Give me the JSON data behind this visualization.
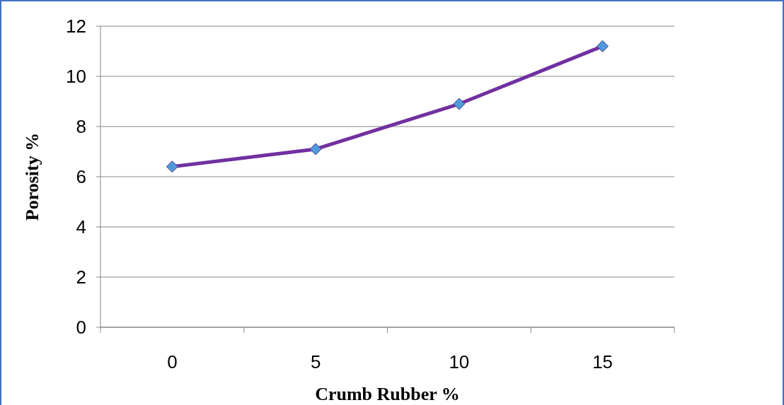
{
  "chart_data": {
    "type": "line",
    "xlabel": "Crumb Rubber %",
    "ylabel": "Porosity %",
    "categories": [
      "0",
      "5",
      "10",
      "15"
    ],
    "series": [
      {
        "color": "#7030a0",
        "values": [
          6.4,
          7.1,
          8.9,
          11.2
        ]
      }
    ],
    "ylim": [
      0,
      12
    ],
    "yticks": [
      0,
      2,
      4,
      6,
      8,
      10,
      12
    ],
    "grid": "y",
    "marker": "diamond",
    "line_style": "solid"
  }
}
